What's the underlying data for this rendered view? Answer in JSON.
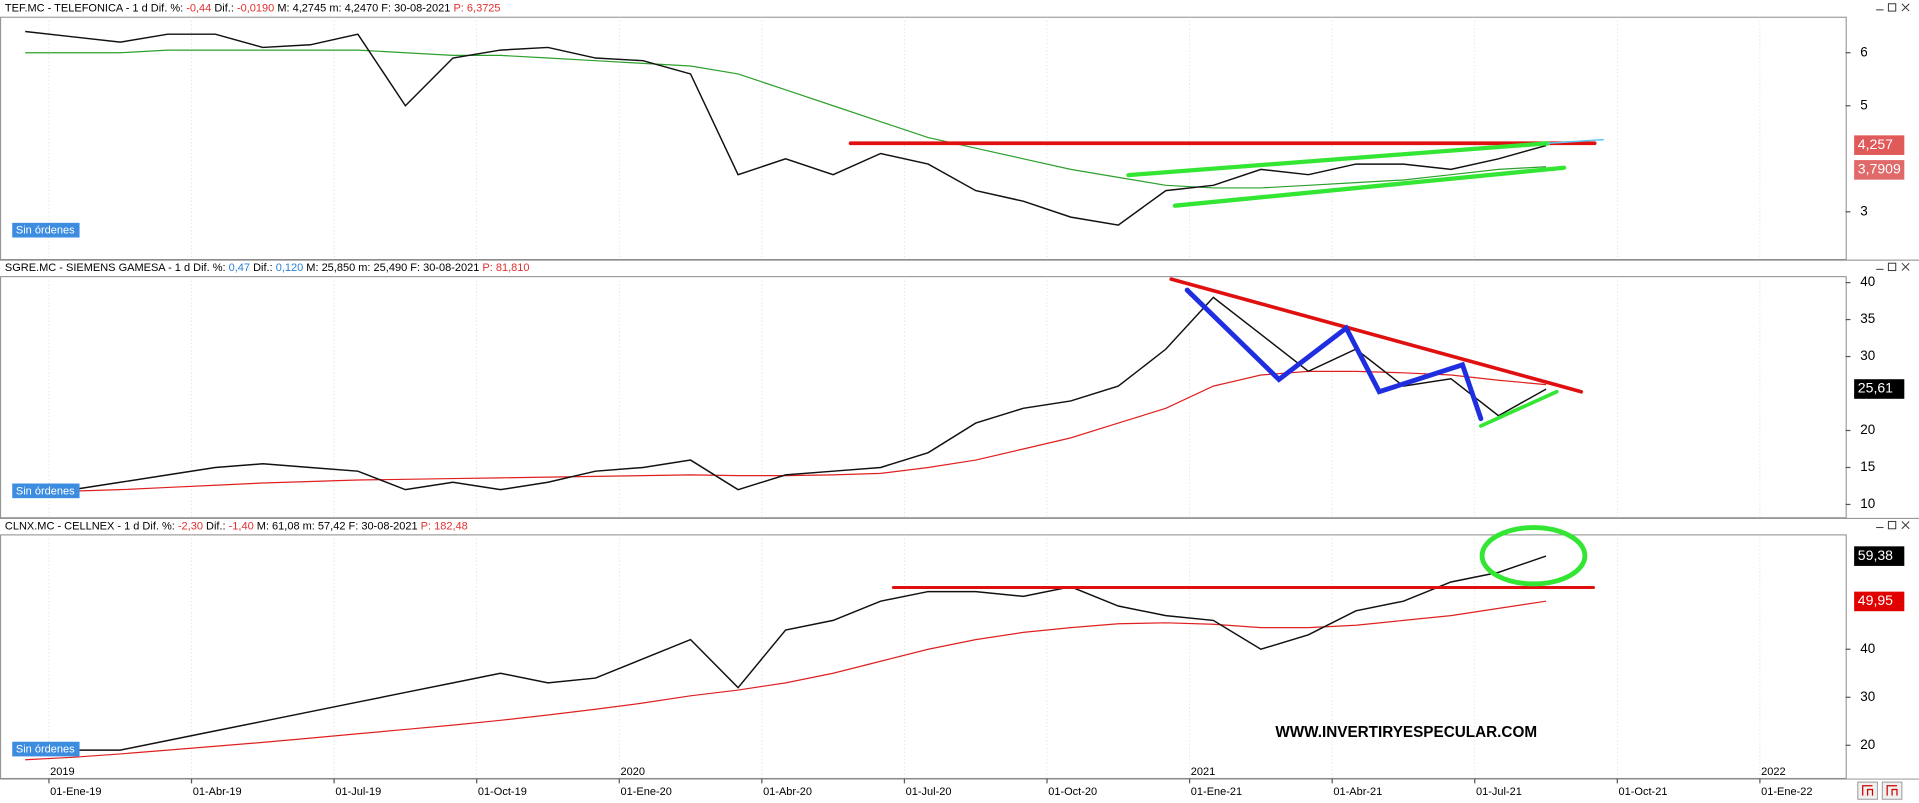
{
  "panels": [
    {
      "header": [
        {
          "t": "TEF.MC - TELEFONICA -  1 d  Dif. %: ",
          "c": "#000000"
        },
        {
          "t": "-0,44",
          "c": "#e03030"
        },
        {
          "t": "  Dif.: ",
          "c": "#000000"
        },
        {
          "t": "-0,0190",
          "c": "#e03030"
        },
        {
          "t": "  M: 4,2745  m: 4,2470  F: 30-08-2021  ",
          "c": "#000000"
        },
        {
          "t": "P: 6,3725",
          "c": "#e03030"
        }
      ],
      "badge": "Sin órdenes",
      "ylim": [
        2.1,
        6.67
      ],
      "yticks": [
        3,
        5,
        6
      ],
      "price": [
        6.4,
        6.3,
        6.2,
        6.35,
        6.35,
        6.1,
        6.15,
        6.35,
        5.0,
        5.9,
        6.05,
        6.1,
        5.9,
        5.85,
        5.6,
        3.7,
        4.0,
        3.7,
        4.1,
        3.9,
        3.4,
        3.2,
        2.9,
        2.75,
        3.4,
        3.5,
        3.8,
        3.7,
        3.9,
        3.9,
        3.8,
        4.0,
        4.25
      ],
      "average": [
        6.0,
        6.0,
        6.0,
        6.05,
        6.05,
        6.05,
        6.05,
        6.05,
        6.0,
        5.95,
        5.95,
        5.9,
        5.85,
        5.8,
        5.75,
        5.6,
        5.3,
        5.0,
        4.7,
        4.4,
        4.2,
        4.0,
        3.8,
        3.65,
        3.5,
        3.45,
        3.45,
        3.5,
        3.55,
        3.6,
        3.7,
        3.8,
        3.85
      ],
      "average_color": "#2ca02c",
      "tags": [
        {
          "value": 4.257,
          "label": "4,257",
          "color": "#e05a5a"
        },
        {
          "value": 3.7909,
          "label": "3,7909",
          "color": "#e06a6a"
        }
      ]
    },
    {
      "header": [
        {
          "t": "SGRE.MC - SIEMENS GAMESA -  1 d  Dif. %: ",
          "c": "#000000"
        },
        {
          "t": "0,47",
          "c": "#2a7fd4"
        },
        {
          "t": "  Dif.: ",
          "c": "#000000"
        },
        {
          "t": "0,120",
          "c": "#2a7fd4"
        },
        {
          "t": "  M: 25,850  m: 25,490  F: 30-08-2021  ",
          "c": "#000000"
        },
        {
          "t": "P: 81,810",
          "c": "#e03030"
        }
      ],
      "badge": "Sin órdenes",
      "ylim": [
        8.2,
        40.8
      ],
      "yticks": [
        10,
        15,
        20,
        30,
        35,
        40
      ],
      "price": [
        11,
        12,
        13,
        14,
        15,
        15.5,
        15,
        14.5,
        12,
        13,
        12,
        13,
        14.5,
        15,
        16,
        12,
        14,
        14.5,
        15,
        17,
        21,
        23,
        24,
        26,
        31,
        38,
        33,
        28,
        31,
        26,
        27,
        22,
        25.6
      ],
      "average": [
        11.5,
        11.8,
        12,
        12.3,
        12.6,
        12.9,
        13.1,
        13.3,
        13.4,
        13.5,
        13.6,
        13.7,
        13.8,
        13.9,
        14,
        13.9,
        13.9,
        14,
        14.2,
        15,
        16,
        17.5,
        19,
        21,
        23,
        26,
        27.5,
        28,
        28,
        27.8,
        27.5,
        26.8,
        26.2
      ],
      "average_color": "#e02020",
      "tags": [
        {
          "value": 25.61,
          "label": "25,61",
          "color": "#000000"
        }
      ]
    },
    {
      "header": [
        {
          "t": "CLNX.MC - CELLNEX -  1 d  Dif. %: ",
          "c": "#000000"
        },
        {
          "t": "-2,30",
          "c": "#e03030"
        },
        {
          "t": "  Dif.: ",
          "c": "#000000"
        },
        {
          "t": "-1,40",
          "c": "#e03030"
        },
        {
          "t": "  M: 61,08  m: 57,42  F: 30-08-2021  ",
          "c": "#000000"
        },
        {
          "t": "P: 182,48",
          "c": "#e03030"
        }
      ],
      "badge": "Sin órdenes",
      "ylim": [
        13.1,
        63.8
      ],
      "yticks": [
        20,
        30,
        40
      ],
      "price": [
        18,
        19,
        19,
        21,
        23,
        25,
        27,
        29,
        31,
        33,
        35,
        33,
        34,
        38,
        42,
        32,
        44,
        46,
        50,
        52,
        52,
        51,
        53,
        49,
        47,
        46,
        40,
        43,
        48,
        50,
        54,
        56,
        59.4
      ],
      "average": [
        17,
        17.5,
        18.2,
        19,
        19.8,
        20.6,
        21.5,
        22.4,
        23.3,
        24.2,
        25.2,
        26.3,
        27.5,
        28.8,
        30.3,
        31.5,
        33,
        35,
        37.5,
        40,
        42,
        43.5,
        44.5,
        45.3,
        45.5,
        45.2,
        44.5,
        44.5,
        45,
        46,
        47,
        48.5,
        50
      ],
      "average_color": "#e02020",
      "tags": [
        {
          "value": 59.38,
          "label": "59,38",
          "color": "#000000"
        },
        {
          "value": 49.95,
          "label": "49,95",
          "color": "#e00000"
        }
      ]
    }
  ],
  "date_labels": [
    "01-Ene-19",
    "01-Abr-19",
    "01-Jul-19",
    "01-Oct-19",
    "01-Ene-20",
    "01-Abr-20",
    "01-Jul-20",
    "01-Oct-20",
    "01-Ene-21",
    "01-Abr-21",
    "01-Jul-21",
    "01-Oct-21",
    "01-Ene-22"
  ],
  "year_labels": [
    "2019",
    "2020",
    "2021",
    "2022"
  ],
  "watermark": "WWW.INVERTIRYESPECULAR.COM"
}
